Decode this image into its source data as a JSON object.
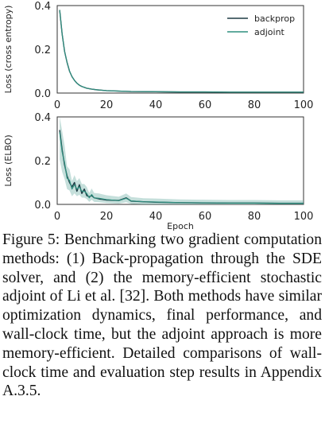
{
  "chart_data": [
    {
      "type": "line",
      "xlabel": "",
      "ylabel": "Loss (cross entropy)",
      "xlim": [
        0,
        100
      ],
      "ylim": [
        0,
        0.4
      ],
      "xticks": [
        "0",
        "20",
        "40",
        "60",
        "80",
        "100"
      ],
      "yticks": [
        "0.0",
        "0.2",
        "0.4"
      ],
      "legend_position": "top-right",
      "grid": false,
      "series": [
        {
          "name": "backprop",
          "color": "#1f3b44",
          "x": [
            1,
            2,
            3,
            4,
            5,
            6,
            7,
            8,
            9,
            10,
            12,
            14,
            16,
            18,
            20,
            25,
            30,
            40,
            50,
            60,
            70,
            80,
            90,
            100
          ],
          "y": [
            0.38,
            0.27,
            0.19,
            0.14,
            0.1,
            0.075,
            0.058,
            0.045,
            0.036,
            0.03,
            0.022,
            0.018,
            0.015,
            0.013,
            0.011,
            0.009,
            0.007,
            0.006,
            0.005,
            0.005,
            0.004,
            0.004,
            0.004,
            0.004
          ]
        },
        {
          "name": "adjoint",
          "color": "#2f8f7f",
          "x": [
            1,
            2,
            3,
            4,
            5,
            6,
            7,
            8,
            9,
            10,
            12,
            14,
            16,
            18,
            20,
            25,
            30,
            40,
            50,
            60,
            70,
            80,
            90,
            100
          ],
          "y": [
            0.38,
            0.27,
            0.19,
            0.14,
            0.1,
            0.075,
            0.058,
            0.045,
            0.036,
            0.03,
            0.022,
            0.018,
            0.015,
            0.013,
            0.011,
            0.009,
            0.007,
            0.006,
            0.005,
            0.005,
            0.004,
            0.004,
            0.004,
            0.004
          ]
        }
      ]
    },
    {
      "type": "line",
      "xlabel": "Epoch",
      "ylabel": "Loss (ELBO)",
      "xlim": [
        0,
        100
      ],
      "ylim": [
        0,
        0.4
      ],
      "xticks": [
        "0",
        "20",
        "40",
        "60",
        "80",
        "100"
      ],
      "yticks": [
        "0.0",
        "0.2",
        "0.4"
      ],
      "grid": false,
      "series": [
        {
          "name": "backprop",
          "color": "#1f3b44",
          "x": [
            1,
            2,
            3,
            4,
            5,
            6,
            7,
            8,
            9,
            10,
            11,
            12,
            13,
            14,
            15,
            17,
            20,
            25,
            28,
            30,
            35,
            40,
            50,
            60,
            70,
            80,
            90,
            100
          ],
          "y": [
            0.34,
            0.25,
            0.18,
            0.13,
            0.1,
            0.08,
            0.1,
            0.06,
            0.09,
            0.05,
            0.07,
            0.04,
            0.035,
            0.04,
            0.03,
            0.025,
            0.02,
            0.018,
            0.03,
            0.015,
            0.012,
            0.01,
            0.008,
            0.007,
            0.006,
            0.006,
            0.005,
            0.005
          ]
        },
        {
          "name": "adjoint",
          "color": "#2f8f7f",
          "x": [
            1,
            2,
            3,
            4,
            5,
            6,
            7,
            8,
            9,
            10,
            11,
            12,
            13,
            14,
            15,
            17,
            20,
            25,
            28,
            30,
            35,
            40,
            50,
            60,
            70,
            80,
            90,
            100
          ],
          "y": [
            0.33,
            0.24,
            0.19,
            0.12,
            0.11,
            0.07,
            0.09,
            0.07,
            0.08,
            0.06,
            0.06,
            0.05,
            0.03,
            0.045,
            0.03,
            0.028,
            0.022,
            0.017,
            0.028,
            0.016,
            0.012,
            0.011,
            0.008,
            0.007,
            0.006,
            0.006,
            0.005,
            0.005
          ]
        }
      ]
    }
  ],
  "caption": "Figure 5: Benchmarking two gradient computation methods: (1) Back-propagation through the SDE solver, and (2) the memory-efficient stochastic adjoint of Li et al. [32]. Both methods have similar optimization dynamics, final performance, and wall-clock time, but the adjoint approach is more memory-efficient. Detailed comparisons of wall-clock time and evaluation step results in Appendix A.3.5."
}
